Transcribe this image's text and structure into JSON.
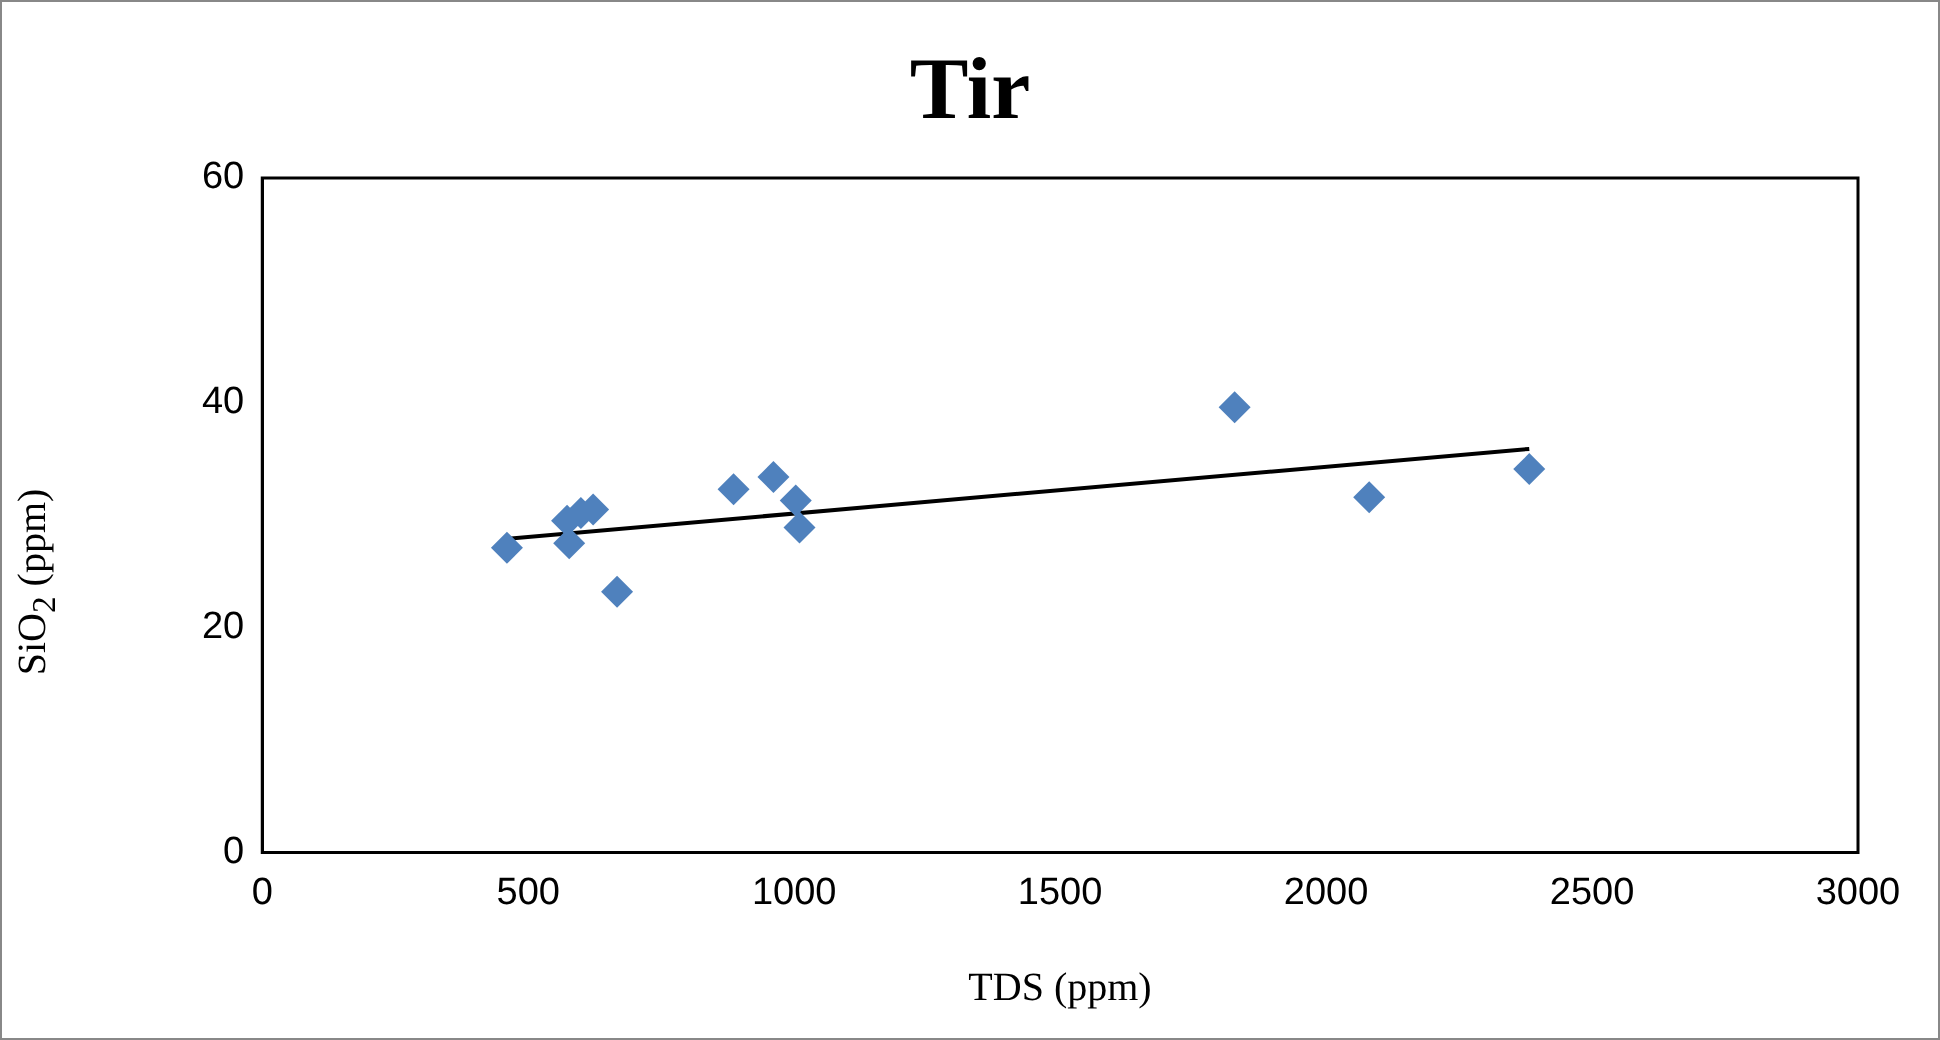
{
  "chart_data": {
    "type": "scatter",
    "title": "Tir",
    "xlabel": "TDS (ppm)",
    "ylabel": "SiO$_{2}$ (ppm)",
    "xlim": [
      0,
      3000
    ],
    "xticks": [
      0,
      500,
      1000,
      1500,
      2000,
      2500,
      3000
    ],
    "ylim": [
      0,
      60
    ],
    "yticks": [
      0,
      20,
      40,
      60
    ],
    "grid": false,
    "legend": false,
    "marker": "diamond",
    "series": [
      {
        "color": "#4f81bd",
        "x": [
          460,
          577,
          573,
          599,
          622,
          667,
          886,
          961,
          1003,
          1010,
          1828,
          2081,
          2382
        ],
        "values": [
          27.1,
          27.5,
          29.5,
          30.2,
          30.5,
          23.2,
          32.3,
          33.4,
          31.3,
          28.9,
          39.6,
          31.6,
          34.1
        ]
      },
      {
        "type": "line",
        "color": "#000000",
        "marker": "none",
        "x": [
          460,
          2382
        ],
        "values": [
          27.9,
          35.9
        ]
      }
    ]
  }
}
